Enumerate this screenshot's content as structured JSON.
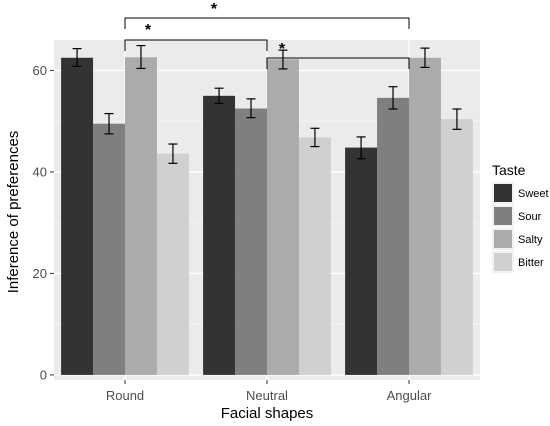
{
  "chart_data": {
    "type": "bar",
    "xlabel": "Facial shapes",
    "ylabel": "Inference of preferences",
    "categories": [
      "Round",
      "Neutral",
      "Angular"
    ],
    "ylim": [
      -1,
      66
    ],
    "yticks": [
      0,
      20,
      40,
      60
    ],
    "grid": true,
    "legend": {
      "title": "Taste",
      "placement": "right"
    },
    "series": [
      {
        "name": "Sweet",
        "color": "#333333",
        "values": [
          62.5,
          55.0,
          44.8
        ],
        "err_low": [
          60.8,
          53.5,
          42.6
        ],
        "err_high": [
          64.3,
          56.5,
          46.9
        ]
      },
      {
        "name": "Sour",
        "color": "#7f7f7f",
        "values": [
          49.5,
          52.5,
          54.6
        ],
        "err_low": [
          47.5,
          50.7,
          52.4
        ],
        "err_high": [
          51.5,
          54.4,
          56.8
        ]
      },
      {
        "name": "Salty",
        "color": "#ababab",
        "values": [
          62.6,
          62.2,
          62.5
        ],
        "err_low": [
          60.4,
          60.3,
          60.6
        ],
        "err_high": [
          64.9,
          64.0,
          64.4
        ]
      },
      {
        "name": "Bitter",
        "color": "#d0d0d0",
        "values": [
          43.6,
          46.8,
          50.4
        ],
        "err_low": [
          41.7,
          45.0,
          48.4
        ],
        "err_high": [
          45.5,
          48.6,
          52.4
        ]
      }
    ],
    "annotations": [
      {
        "label": "*",
        "from": "Round",
        "to": "Angular"
      },
      {
        "label": "*",
        "from": "Round",
        "to": "Neutral"
      },
      {
        "label": "*",
        "from": "Neutral",
        "to": "Angular"
      }
    ]
  }
}
